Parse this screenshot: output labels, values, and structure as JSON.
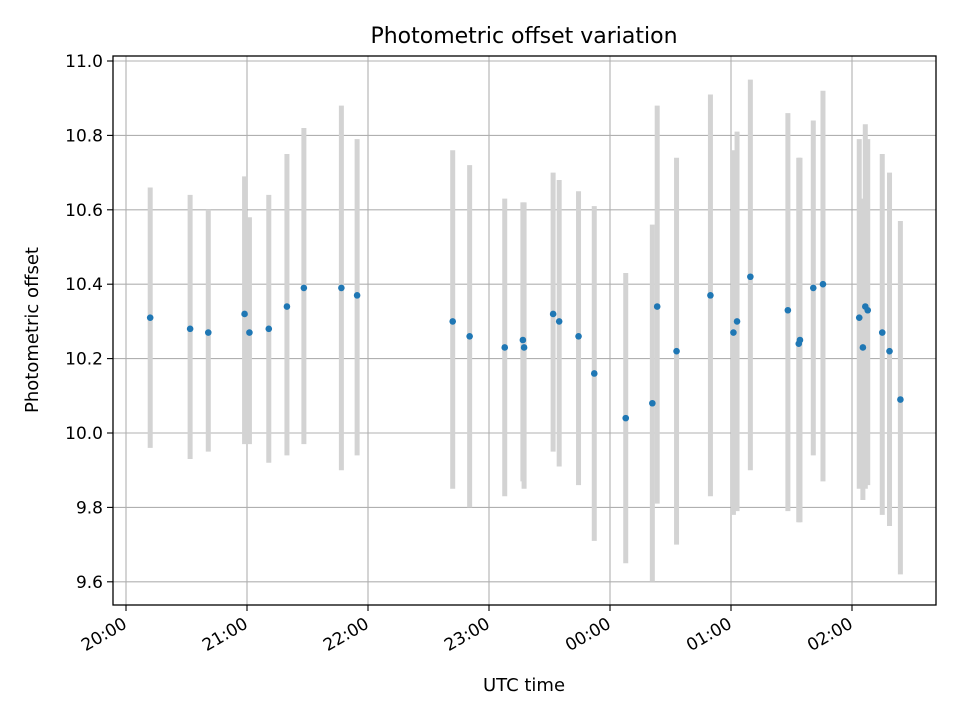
{
  "chart_data": {
    "type": "scatter",
    "title": "Photometric offset variation",
    "xlabel": "UTC time",
    "ylabel": "Photometric offset",
    "x_unit": "hours (UTC, continuing past midnight)",
    "xlim": [
      19.9,
      26.7
    ],
    "ylim": [
      9.54,
      11.02
    ],
    "grid": true,
    "x_ticks": [
      {
        "value": 20,
        "label": "20:00"
      },
      {
        "value": 21,
        "label": "21:00"
      },
      {
        "value": 22,
        "label": "22:00"
      },
      {
        "value": 23,
        "label": "23:00"
      },
      {
        "value": 24,
        "label": "00:00"
      },
      {
        "value": 25,
        "label": "01:00"
      },
      {
        "value": 26,
        "label": "02:00"
      }
    ],
    "y_ticks": [
      {
        "value": 9.6,
        "label": "9.6"
      },
      {
        "value": 9.8,
        "label": "9.8"
      },
      {
        "value": 10.0,
        "label": "10.0"
      },
      {
        "value": 10.2,
        "label": "10.2"
      },
      {
        "value": 10.4,
        "label": "10.4"
      },
      {
        "value": 10.6,
        "label": "10.6"
      },
      {
        "value": 10.8,
        "label": "10.8"
      },
      {
        "value": 11.0,
        "label": "11.0"
      }
    ],
    "colors": {
      "point": "#1f77b4",
      "errorbar": "#d3d3d3"
    },
    "points": [
      {
        "x": 20.2,
        "y": 10.31,
        "lo": 9.96,
        "hi": 10.66
      },
      {
        "x": 20.53,
        "y": 10.28,
        "lo": 9.93,
        "hi": 10.64
      },
      {
        "x": 20.68,
        "y": 10.27,
        "lo": 9.95,
        "hi": 10.6
      },
      {
        "x": 20.98,
        "y": 10.32,
        "lo": 9.97,
        "hi": 10.69
      },
      {
        "x": 21.02,
        "y": 10.27,
        "lo": 9.97,
        "hi": 10.58
      },
      {
        "x": 21.18,
        "y": 10.28,
        "lo": 9.92,
        "hi": 10.64
      },
      {
        "x": 21.33,
        "y": 10.34,
        "lo": 9.94,
        "hi": 10.75
      },
      {
        "x": 21.47,
        "y": 10.39,
        "lo": 9.97,
        "hi": 10.82
      },
      {
        "x": 21.78,
        "y": 10.39,
        "lo": 9.9,
        "hi": 10.88
      },
      {
        "x": 21.91,
        "y": 10.37,
        "lo": 9.94,
        "hi": 10.79
      },
      {
        "x": 22.7,
        "y": 10.3,
        "lo": 9.85,
        "hi": 10.76
      },
      {
        "x": 22.84,
        "y": 10.26,
        "lo": 9.8,
        "hi": 10.72
      },
      {
        "x": 23.13,
        "y": 10.23,
        "lo": 9.83,
        "hi": 10.63
      },
      {
        "x": 23.28,
        "y": 10.25,
        "lo": 9.87,
        "hi": 10.62
      },
      {
        "x": 23.29,
        "y": 10.23,
        "lo": 9.85,
        "hi": 10.62
      },
      {
        "x": 23.53,
        "y": 10.32,
        "lo": 9.95,
        "hi": 10.7
      },
      {
        "x": 23.58,
        "y": 10.3,
        "lo": 9.91,
        "hi": 10.68
      },
      {
        "x": 23.74,
        "y": 10.26,
        "lo": 9.86,
        "hi": 10.65
      },
      {
        "x": 23.87,
        "y": 10.16,
        "lo": 9.71,
        "hi": 10.61
      },
      {
        "x": 24.13,
        "y": 10.04,
        "lo": 9.65,
        "hi": 10.43
      },
      {
        "x": 24.35,
        "y": 10.08,
        "lo": 9.6,
        "hi": 10.56
      },
      {
        "x": 24.39,
        "y": 10.34,
        "lo": 9.81,
        "hi": 10.88
      },
      {
        "x": 24.55,
        "y": 10.22,
        "lo": 9.7,
        "hi": 10.74
      },
      {
        "x": 24.83,
        "y": 10.37,
        "lo": 9.83,
        "hi": 10.91
      },
      {
        "x": 25.02,
        "y": 10.27,
        "lo": 9.78,
        "hi": 10.76
      },
      {
        "x": 25.05,
        "y": 10.3,
        "lo": 9.79,
        "hi": 10.81
      },
      {
        "x": 25.16,
        "y": 10.42,
        "lo": 9.9,
        "hi": 10.95
      },
      {
        "x": 25.47,
        "y": 10.33,
        "lo": 9.79,
        "hi": 10.86
      },
      {
        "x": 25.56,
        "y": 10.24,
        "lo": 9.76,
        "hi": 10.74
      },
      {
        "x": 25.57,
        "y": 10.25,
        "lo": 9.76,
        "hi": 10.74
      },
      {
        "x": 25.68,
        "y": 10.39,
        "lo": 9.94,
        "hi": 10.84
      },
      {
        "x": 25.76,
        "y": 10.4,
        "lo": 9.87,
        "hi": 10.92
      },
      {
        "x": 26.06,
        "y": 10.31,
        "lo": 9.85,
        "hi": 10.79
      },
      {
        "x": 26.09,
        "y": 10.23,
        "lo": 9.82,
        "hi": 10.63
      },
      {
        "x": 26.11,
        "y": 10.34,
        "lo": 9.85,
        "hi": 10.83
      },
      {
        "x": 26.13,
        "y": 10.33,
        "lo": 9.86,
        "hi": 10.79
      },
      {
        "x": 26.25,
        "y": 10.27,
        "lo": 9.78,
        "hi": 10.75
      },
      {
        "x": 26.31,
        "y": 10.22,
        "lo": 9.75,
        "hi": 10.7
      },
      {
        "x": 26.4,
        "y": 10.09,
        "lo": 9.62,
        "hi": 10.57
      }
    ]
  }
}
